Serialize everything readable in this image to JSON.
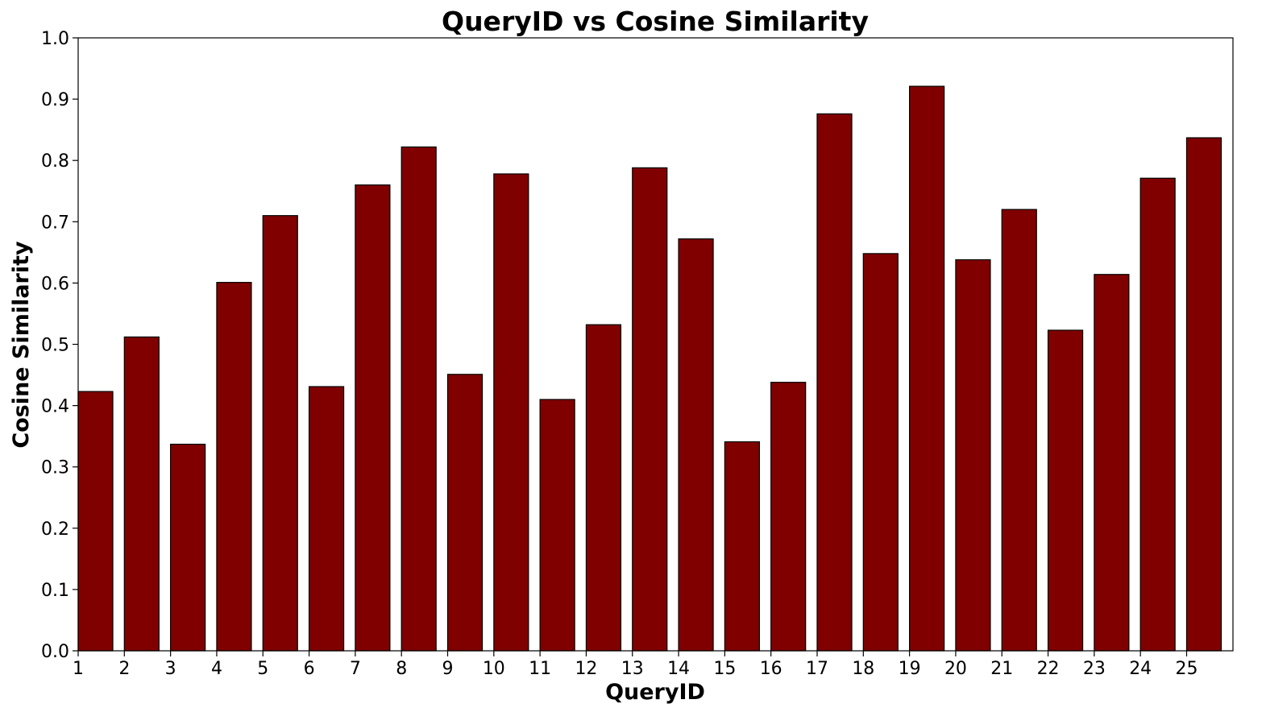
{
  "chart_data": {
    "type": "bar",
    "title": "QueryID vs Cosine Similarity",
    "xlabel": "QueryID",
    "ylabel": "Cosine Similarity",
    "categories": [
      "1",
      "2",
      "3",
      "4",
      "5",
      "6",
      "7",
      "8",
      "9",
      "10",
      "11",
      "12",
      "13",
      "14",
      "15",
      "16",
      "17",
      "18",
      "19",
      "20",
      "21",
      "22",
      "23",
      "24",
      "25"
    ],
    "values": [
      0.423,
      0.512,
      0.337,
      0.601,
      0.71,
      0.431,
      0.76,
      0.822,
      0.451,
      0.778,
      0.41,
      0.532,
      0.788,
      0.672,
      0.341,
      0.438,
      0.876,
      0.648,
      0.921,
      0.638,
      0.72,
      0.523,
      0.614,
      0.771,
      0.837
    ],
    "ylim": [
      0,
      1.0
    ],
    "yticks": [
      "0.0",
      "0.1",
      "0.2",
      "0.3",
      "0.4",
      "0.5",
      "0.6",
      "0.7",
      "0.8",
      "0.9",
      "1.0"
    ],
    "bar_color": "#800000",
    "edge_color": "#000000",
    "grid": false
  }
}
